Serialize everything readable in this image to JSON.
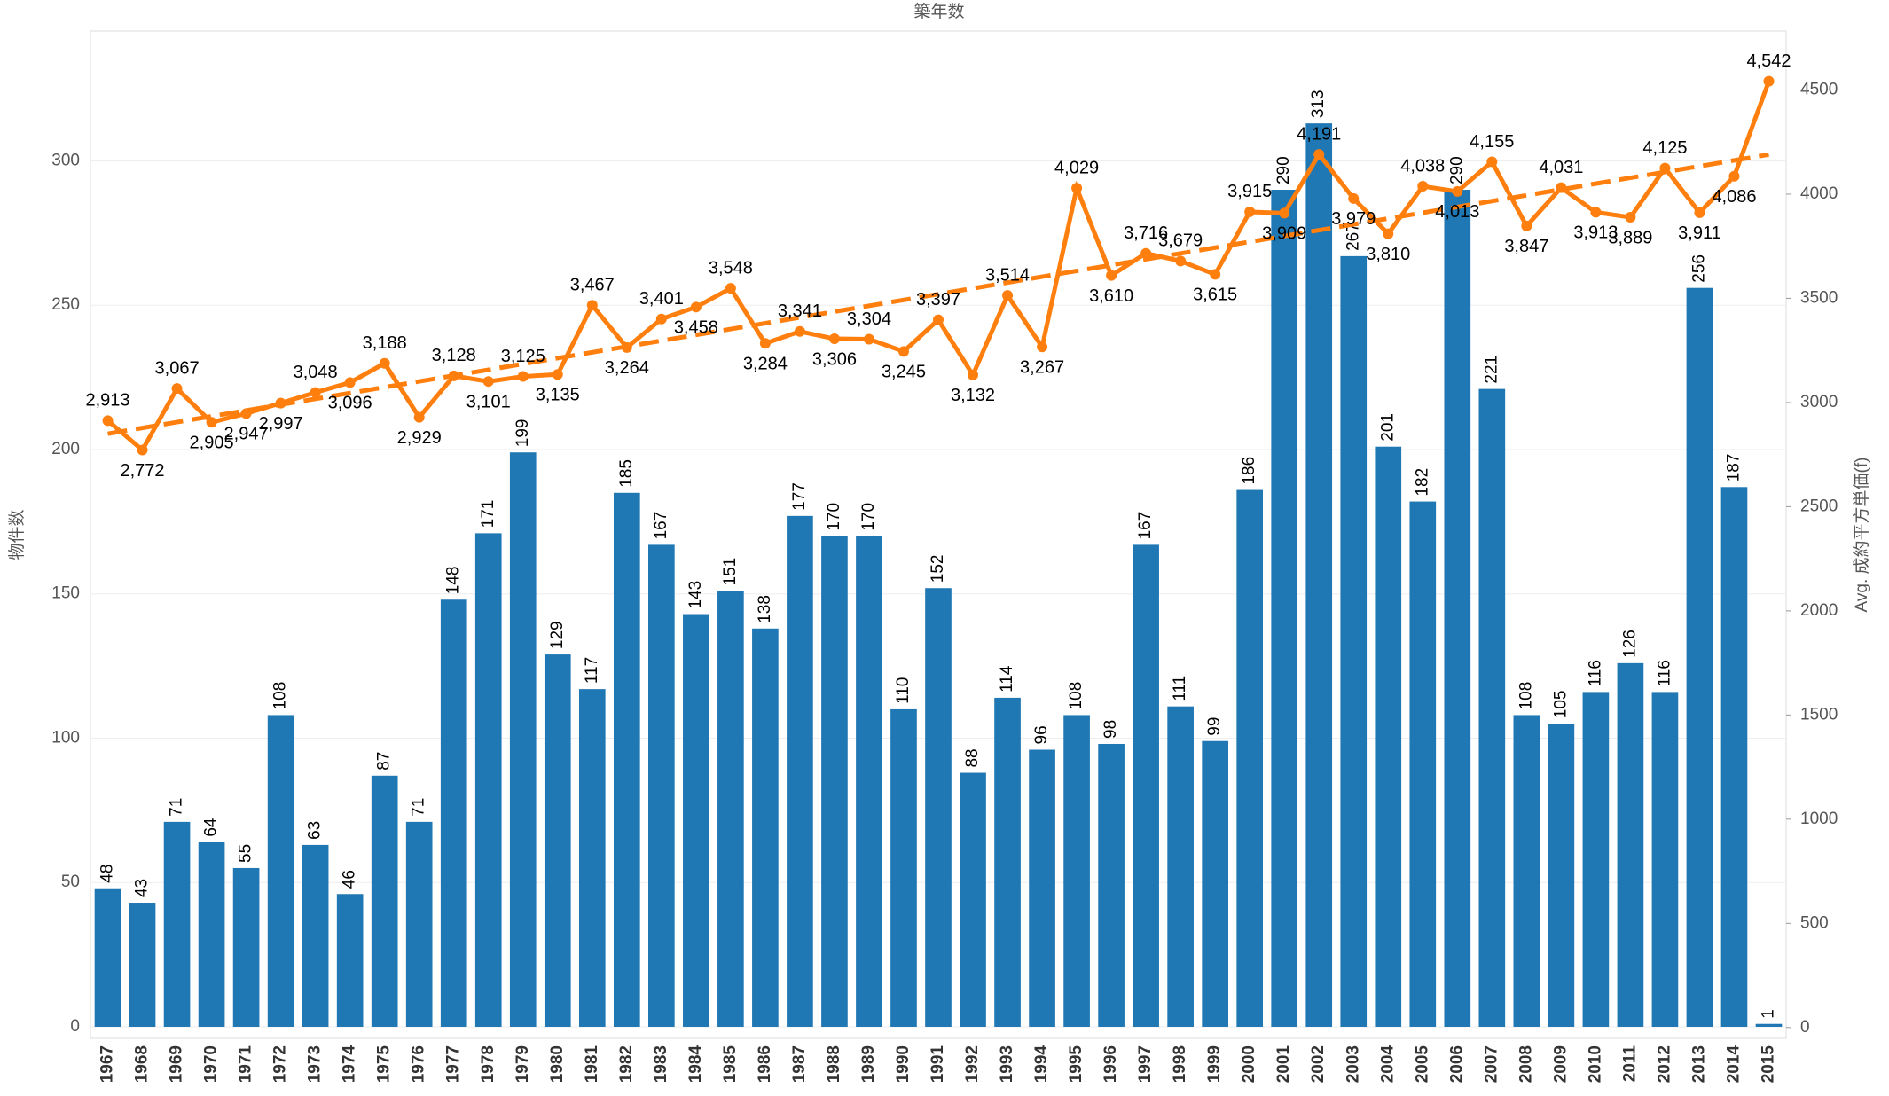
{
  "chart_data": {
    "type": "bar-line",
    "title": "築年数",
    "y_label": "物件数",
    "y2_label": "Avg. 成約平方単価(f)",
    "categories": [
      "1967",
      "1968",
      "1969",
      "1970",
      "1971",
      "1972",
      "1973",
      "1974",
      "1975",
      "1976",
      "1977",
      "1978",
      "1979",
      "1980",
      "1981",
      "1982",
      "1983",
      "1984",
      "1985",
      "1986",
      "1987",
      "1988",
      "1989",
      "1990",
      "1991",
      "1992",
      "1993",
      "1994",
      "1995",
      "1996",
      "1997",
      "1998",
      "1999",
      "2000",
      "2001",
      "2002",
      "2003",
      "2004",
      "2005",
      "2006",
      "2007",
      "2008",
      "2009",
      "2010",
      "2011",
      "2012",
      "2013",
      "2014",
      "2015"
    ],
    "series": [
      {
        "name": "物件数",
        "type": "bar",
        "color": "#1f77b4",
        "values": [
          48,
          43,
          71,
          64,
          55,
          108,
          63,
          46,
          87,
          71,
          148,
          171,
          199,
          129,
          117,
          185,
          167,
          143,
          151,
          138,
          177,
          170,
          170,
          110,
          152,
          88,
          114,
          96,
          108,
          98,
          167,
          111,
          99,
          186,
          290,
          313,
          267,
          201,
          182,
          290,
          221,
          108,
          105,
          116,
          126,
          116,
          256,
          187,
          1
        ]
      },
      {
        "name": "Avg. 成約平方単価(f)",
        "type": "line",
        "axis": "y2",
        "color": "#ff7f0e",
        "values": [
          2913,
          2772,
          3067,
          2905,
          2947,
          2997,
          3048,
          3096,
          3188,
          2929,
          3128,
          3101,
          3125,
          3135,
          3467,
          3264,
          3401,
          3458,
          3548,
          3284,
          3341,
          3306,
          3304,
          3245,
          3397,
          3132,
          3514,
          3267,
          4029,
          3610,
          3716,
          3679,
          3615,
          3915,
          3909,
          4191,
          3979,
          3810,
          4038,
          4013,
          4155,
          3847,
          4031,
          3913,
          3889,
          4125,
          3911,
          4086,
          4542
        ],
        "value_labels": [
          "2,913",
          "2,772",
          "3,067",
          "2,905",
          "2,947",
          "2,997",
          "3,048",
          "3,096",
          "3,188",
          "2,929",
          "3,128",
          "3,101",
          "3,125",
          "3,135",
          "3,467",
          "3,264",
          "3,401",
          "3,458",
          "3,548",
          "3,284",
          "3,341",
          "3,306",
          "3,304",
          "3,245",
          "3,397",
          "3,132",
          "3,514",
          "3,267",
          "4,029",
          "3,610",
          "3,716",
          "3,679",
          "3,615",
          "3,915",
          "3,909",
          "4,191",
          "3,979",
          "3,810",
          "4,038",
          "4,013",
          "4,155",
          "3,847",
          "4,031",
          "3,913",
          "3,889",
          "4,125",
          "3,911",
          "4,086",
          "4,542"
        ],
        "trend": [
          2850,
          4190
        ]
      }
    ],
    "ylim": [
      -4,
      345
    ],
    "yticks": [
      0,
      50,
      100,
      150,
      200,
      250,
      300
    ],
    "y2lim": [
      -52,
      4783
    ],
    "y2ticks": [
      0,
      500,
      1000,
      1500,
      2000,
      2500,
      3000,
      3500,
      4000,
      4500
    ],
    "grid": true
  }
}
